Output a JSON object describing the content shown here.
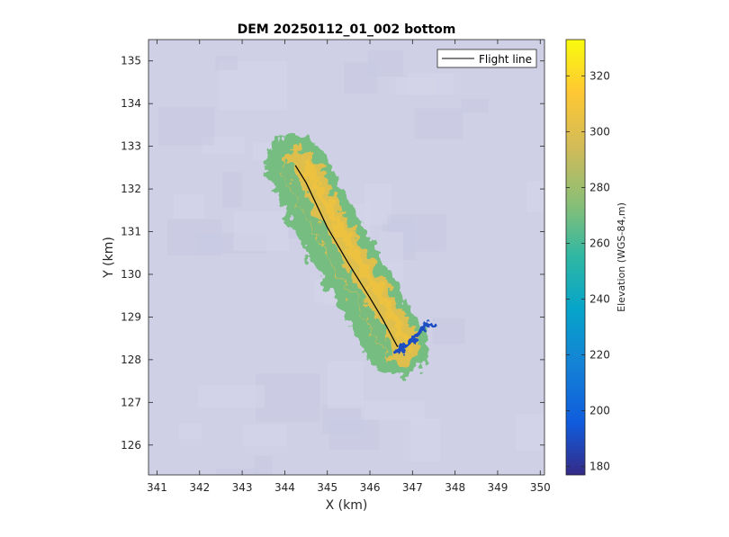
{
  "chart_data": {
    "type": "heatmap",
    "title": "DEM 20250112_01_002 bottom",
    "xlabel": "X (km)",
    "ylabel": "Y (km)",
    "xlim": [
      340.8,
      350.1
    ],
    "ylim": [
      125.3,
      135.5
    ],
    "xticks": [
      341,
      342,
      343,
      344,
      345,
      346,
      347,
      348,
      349,
      350
    ],
    "yticks": [
      126,
      127,
      128,
      129,
      130,
      131,
      132,
      133,
      134,
      135
    ],
    "grid": false,
    "legend": {
      "placement": "top-right",
      "entries": [
        "Flight line"
      ]
    },
    "series": [
      {
        "name": "Flight line",
        "color": "#000000",
        "x": [
          344.25,
          344.5,
          345.0,
          345.5,
          346.0,
          346.3,
          346.65
        ],
        "y": [
          132.55,
          132.15,
          131.1,
          130.25,
          129.45,
          128.95,
          128.3
        ]
      }
    ],
    "dem_swath": {
      "centerline_x": [
        344.25,
        345.0,
        345.5,
        346.0,
        346.65
      ],
      "centerline_y": [
        132.55,
        131.1,
        130.25,
        129.45,
        128.3
      ],
      "dominant_elevation_m": 300,
      "edge_elevation_m": 270,
      "low_tail_elevation_m": 190
    },
    "background_colors": [
      "#cfd0e6",
      "#c8c9e1",
      "#d5d6ea"
    ],
    "colorbar": {
      "label": "Elevation (WGS-84,m)",
      "range": [
        177,
        333
      ],
      "ticks": [
        180,
        200,
        220,
        240,
        260,
        280,
        300,
        320
      ],
      "colormap": "parula"
    }
  }
}
